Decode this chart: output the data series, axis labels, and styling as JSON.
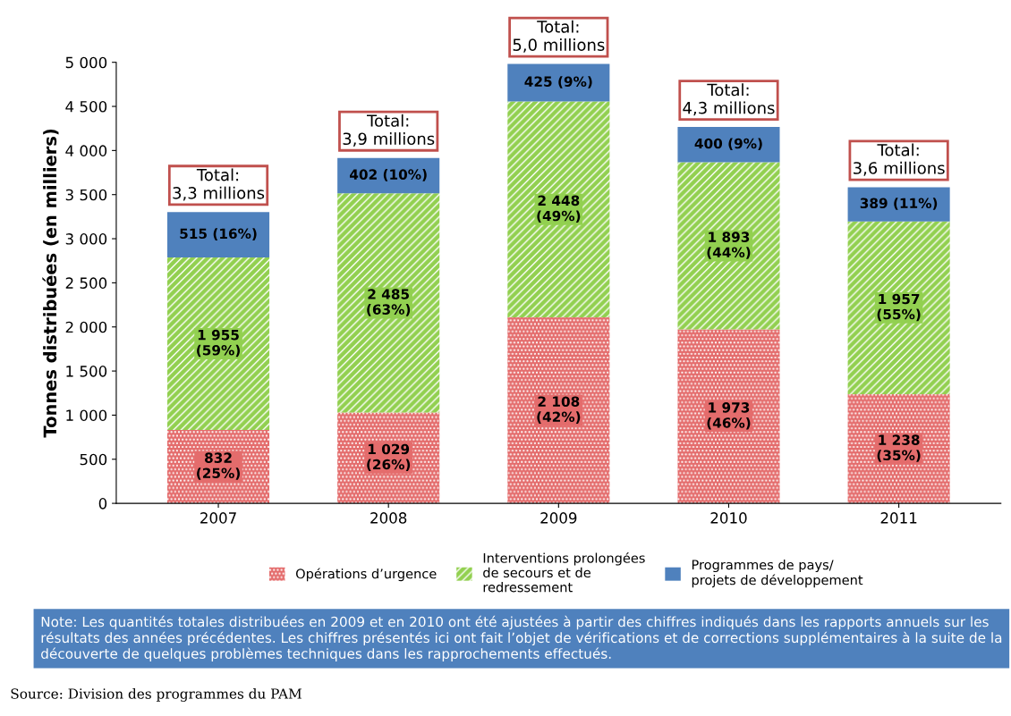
{
  "chart_data": {
    "type": "bar",
    "stacked": true,
    "ylabel": "Tonnes distribuées (en milliers)",
    "categories": [
      "2007",
      "2008",
      "2009",
      "2010",
      "2011"
    ],
    "series": [
      {
        "name": "Opérations d’urgence",
        "color": "#e46c6c",
        "values": [
          832,
          1029,
          2108,
          1973,
          1238
        ],
        "value_labels": [
          "832\n(25%)",
          "1 029\n(26%)",
          "2 108\n(42%)",
          "1 973\n(46%)",
          "1 238\n(35%)"
        ]
      },
      {
        "name": "Interventions prolongées de secours et de redressement",
        "color": "#92d050",
        "values": [
          1955,
          2485,
          2448,
          1893,
          1957
        ],
        "value_labels": [
          "1 955\n(59%)",
          "2 485\n(63%)",
          "2 448\n(49%)",
          "1 893\n(44%)",
          "1 957\n(55%)"
        ]
      },
      {
        "name": "Programmes de pays/ projets de développement",
        "color": "#4f81bd",
        "values": [
          515,
          402,
          425,
          400,
          389
        ],
        "value_labels": [
          "515 (16%)",
          "402 (10%)",
          "425 (9%)",
          "400 (9%)",
          "389 (11%)"
        ]
      }
    ],
    "totals": [
      "Total:\n3,3 millions",
      "Total:\n3,9 millions",
      "Total:\n5,0 millions",
      "Total:\n4,3 millions",
      "Total:\n3,6 millions"
    ],
    "ylim": [
      0,
      5000
    ],
    "yticks": [
      0,
      {
        "value": 500,
        "label": "500"
      },
      {
        "value": 1000,
        "label": "1 000"
      },
      {
        "value": 1500,
        "label": "1 500"
      },
      {
        "value": 2000,
        "label": "2 000"
      },
      {
        "value": 2500,
        "label": "2 500"
      },
      {
        "value": 3000,
        "label": "3 000"
      },
      {
        "value": 3500,
        "label": "3 500"
      },
      {
        "value": 4000,
        "label": "4 000"
      },
      {
        "value": 4500,
        "label": "4 500"
      },
      {
        "value": 5000,
        "label": "5 000"
      }
    ],
    "grid": false,
    "legend": "bottom",
    "annotations": [
      "Note: Les quantités totales distribuées en 2009 et en 2010 ont été ajustées à partir des chiffres indiqués dans les rapports annuels sur les résultats des années précédentes. Les chiffres présentés ici ont fait l’objet de vérifications et de corrections supplémentaires à la suite de la découverte de quelques problèmes techniques dans les rapprochements effectués.",
      "Source: Division des programmes du PAM"
    ]
  }
}
